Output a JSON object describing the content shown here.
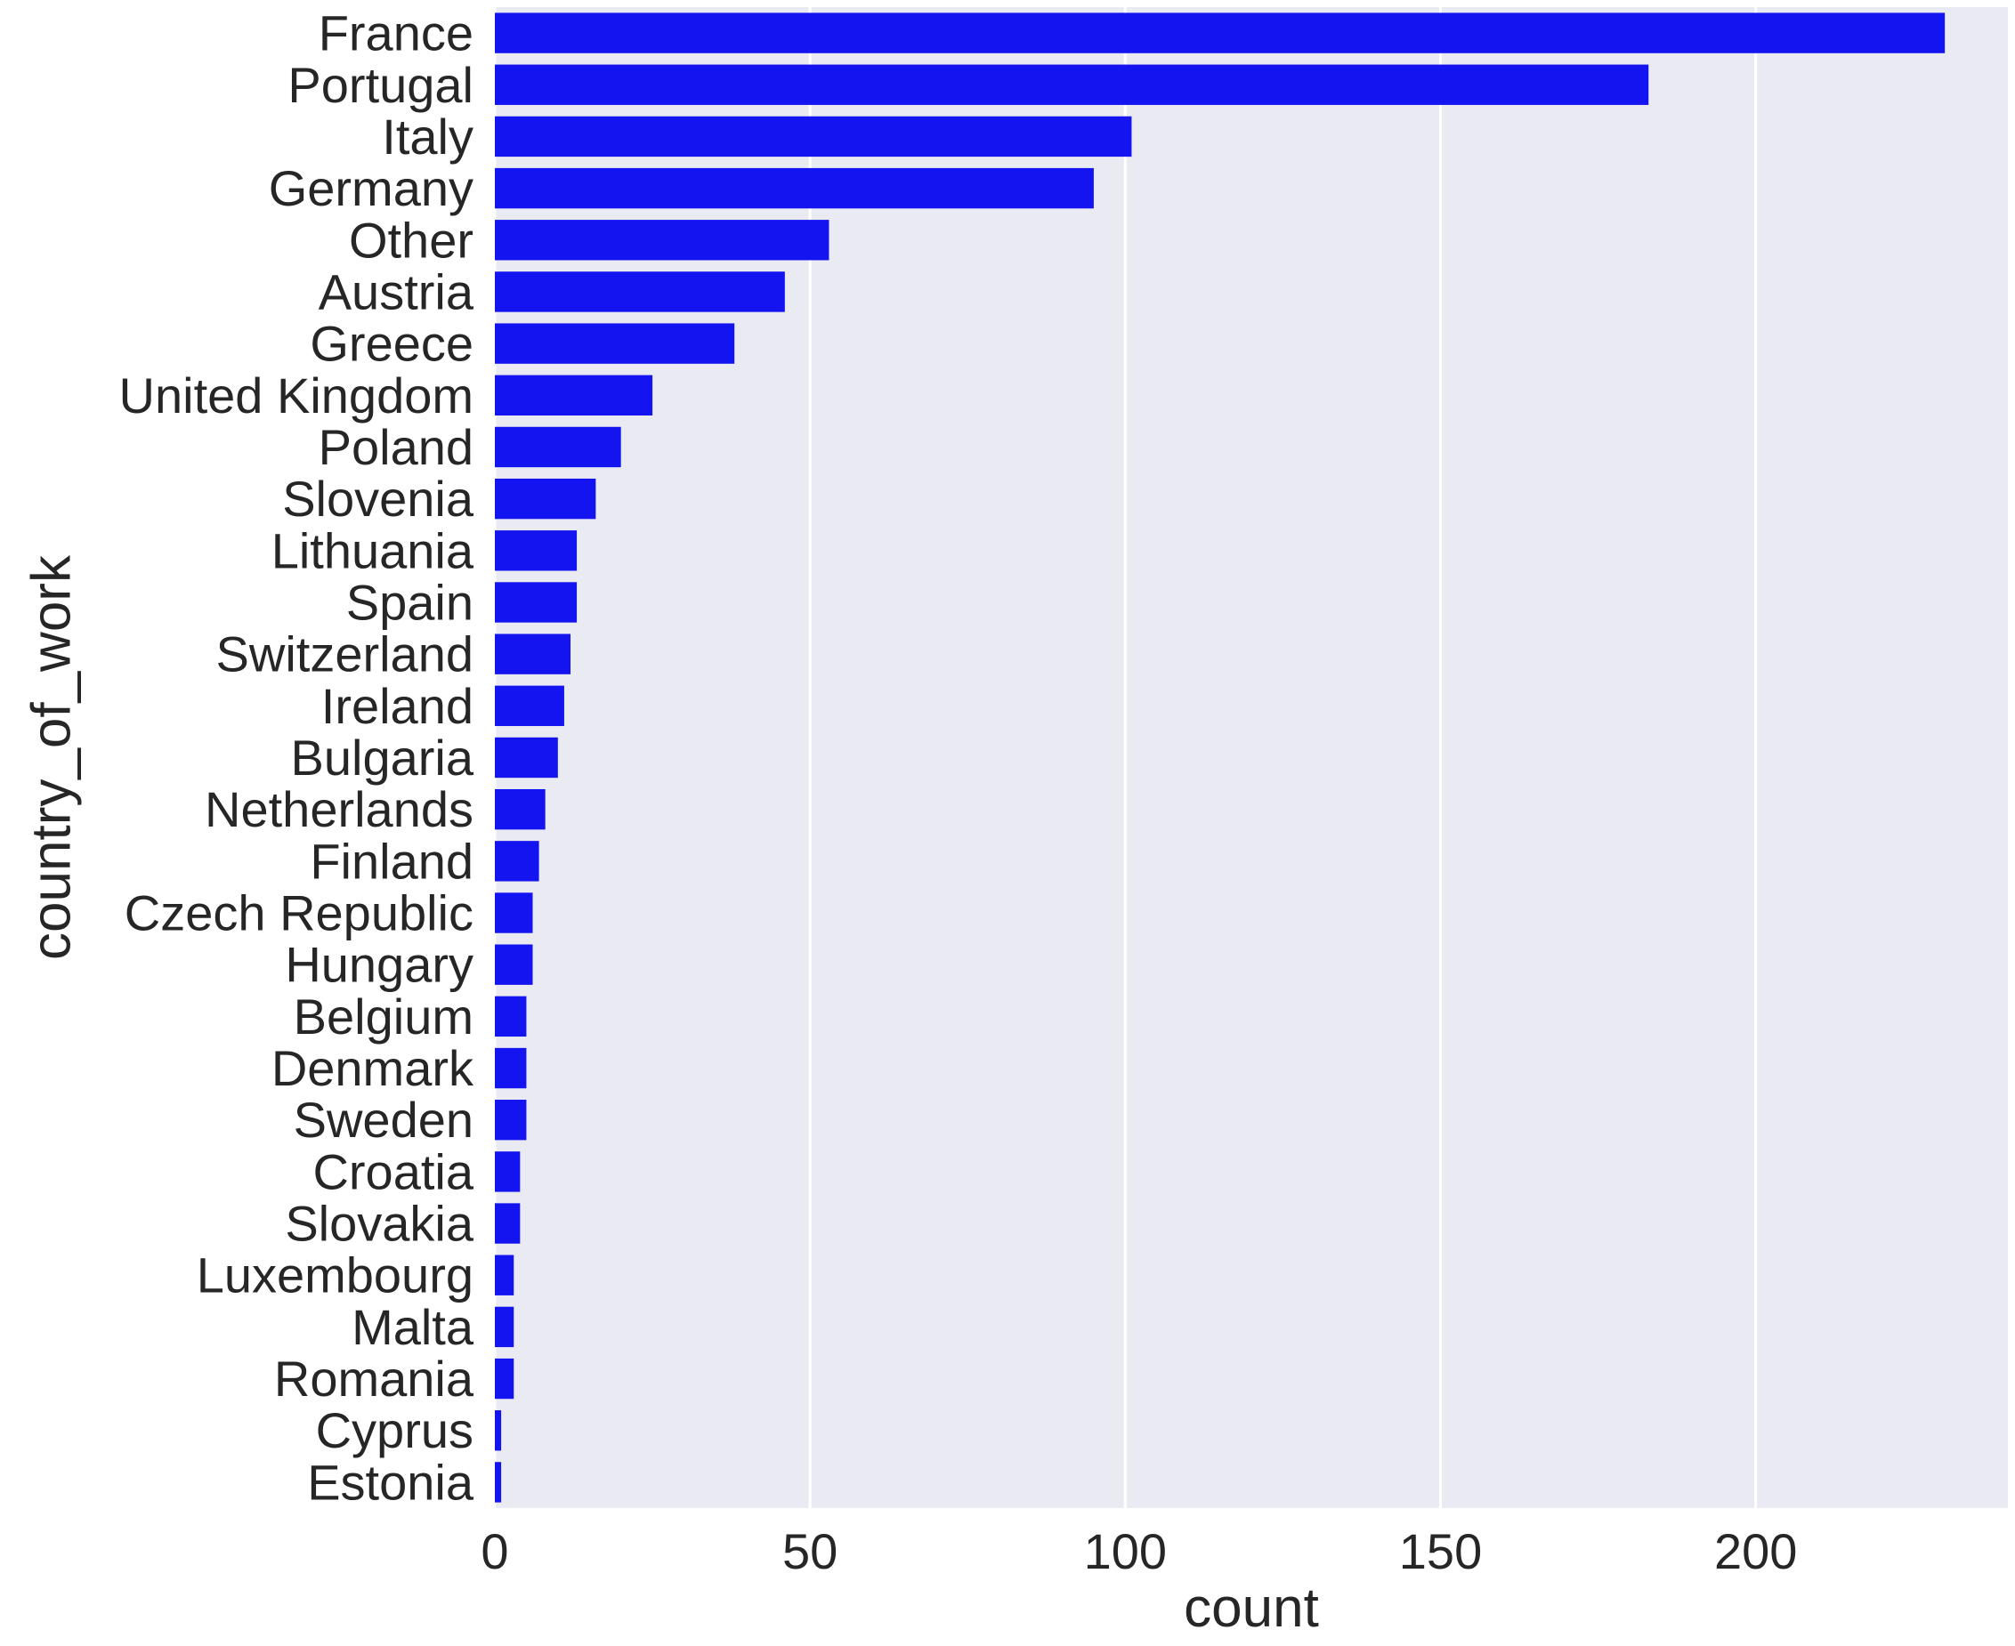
{
  "chart_data": {
    "type": "bar",
    "orientation": "horizontal",
    "categories": [
      "France",
      "Portugal",
      "Italy",
      "Germany",
      "Other",
      "Austria",
      "Greece",
      "United Kingdom",
      "Poland",
      "Slovenia",
      "Lithuania",
      "Spain",
      "Switzerland",
      "Ireland",
      "Bulgaria",
      "Netherlands",
      "Finland",
      "Czech Republic",
      "Hungary",
      "Belgium",
      "Denmark",
      "Sweden",
      "Croatia",
      "Slovakia",
      "Luxembourg",
      "Malta",
      "Romania",
      "Cyprus",
      "Estonia"
    ],
    "values": [
      230,
      183,
      101,
      95,
      53,
      46,
      38,
      25,
      20,
      16,
      13,
      13,
      12,
      11,
      10,
      8,
      7,
      6,
      6,
      5,
      5,
      5,
      4,
      4,
      3,
      3,
      3,
      1,
      1
    ],
    "xlabel": "count",
    "ylabel": "country_of_work",
    "xlim": [
      0,
      240
    ],
    "xticks": [
      0,
      50,
      100,
      150,
      200
    ],
    "grid": true,
    "colors": {
      "bar": "#1414f0",
      "background": "#eaeaf2",
      "grid": "#ffffff",
      "text": "#262626"
    }
  }
}
